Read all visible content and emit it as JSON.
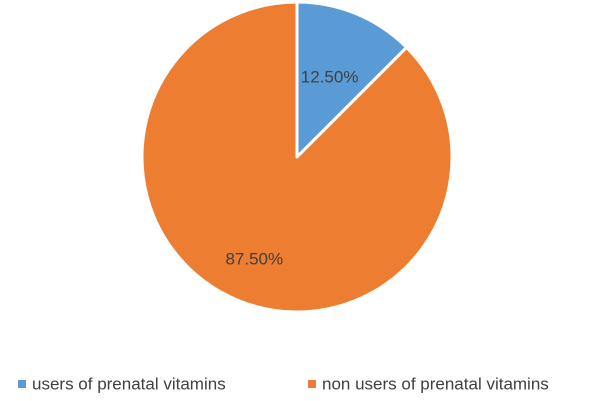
{
  "chart_data": {
    "type": "pie",
    "categories": [
      "users of prenatal vitamins",
      "non users of prenatal vitamins"
    ],
    "values": [
      12.5,
      87.5
    ],
    "data_labels": [
      "12.50%",
      "87.50%"
    ],
    "colors": [
      "#5B9BD5",
      "#ED7D31"
    ],
    "start_angle_deg": 0,
    "direction": "clockwise",
    "legend_position": "bottom"
  }
}
